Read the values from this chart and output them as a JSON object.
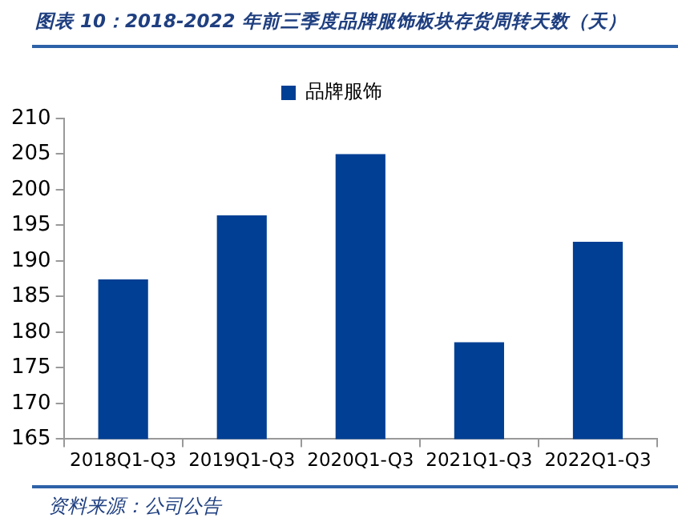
{
  "chart_data": {
    "type": "bar",
    "title": "图表 10：2018-2022 年前三季度品牌服饰板块存货周转天数（天）",
    "categories": [
      "2018Q1-Q3",
      "2019Q1-Q3",
      "2020Q1-Q3",
      "2021Q1-Q3",
      "2022Q1-Q3"
    ],
    "series": [
      {
        "name": "品牌服饰",
        "color": "#003f94",
        "values": [
          187.4,
          196.4,
          205.0,
          178.6,
          192.7
        ]
      }
    ],
    "ylim": [
      165,
      210
    ],
    "yticks": [
      165,
      170,
      175,
      180,
      185,
      190,
      195,
      200,
      205,
      210
    ],
    "legend": "top",
    "annotations": [
      "资料来源：公司公告"
    ]
  }
}
